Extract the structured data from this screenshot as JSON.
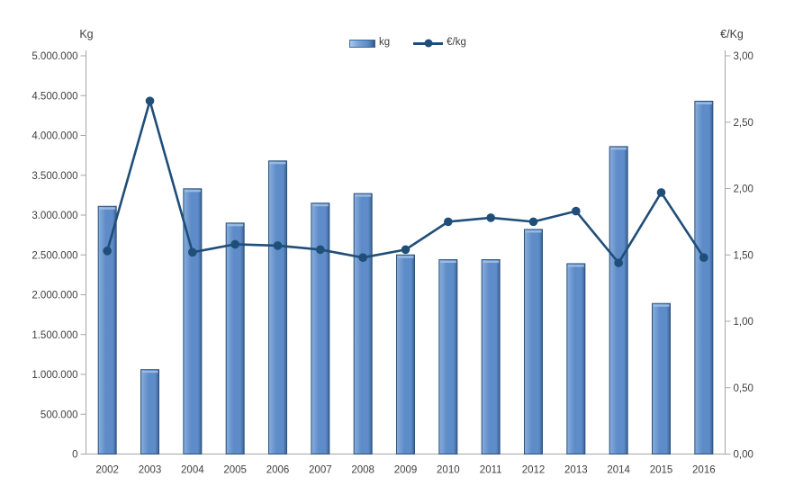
{
  "chart_data": {
    "type": "combo-bar-line",
    "categories": [
      "2002",
      "2003",
      "2004",
      "2005",
      "2006",
      "2007",
      "2008",
      "2009",
      "2010",
      "2011",
      "2012",
      "2013",
      "2014",
      "2015",
      "2016"
    ],
    "series": [
      {
        "name": "kg",
        "type": "bar",
        "axis": "left",
        "values": [
          3110000,
          1060000,
          3330000,
          2900000,
          3680000,
          3150000,
          3270000,
          2500000,
          2440000,
          2440000,
          2820000,
          2390000,
          3860000,
          1890000,
          4430000
        ]
      },
      {
        "name": "€/kg",
        "type": "line",
        "axis": "right",
        "values": [
          1.53,
          2.66,
          1.52,
          1.58,
          1.57,
          1.54,
          1.48,
          1.54,
          1.75,
          1.78,
          1.75,
          1.83,
          1.44,
          1.97,
          1.48
        ]
      }
    ],
    "left_axis": {
      "title": "Kg",
      "min": 0,
      "max": 5000000,
      "step": 500000,
      "tick_labels": [
        "5.000.000",
        "4.500.000",
        "4.000.000",
        "3.500.000",
        "3.000.000",
        "2.500.000",
        "2.000.000",
        "1.500.000",
        "1.000.000",
        "500.000",
        "0"
      ]
    },
    "right_axis": {
      "title": "€/Kg",
      "min": 0,
      "max": 3,
      "step": 0.5,
      "tick_labels": [
        "3,00",
        "2,50",
        "2,00",
        "1,50",
        "1,00",
        "0,50",
        "0,00"
      ]
    },
    "legend": {
      "position": "top",
      "entries": [
        {
          "label": "kg",
          "type": "bar"
        },
        {
          "label": "€/kg",
          "type": "line"
        }
      ]
    },
    "grid": false,
    "colors": {
      "bar_fill_light": "#88AEDC",
      "bar_fill_mid": "#5E8CC8",
      "bar_fill_dark": "#3A6296",
      "bar_stroke": "#2B5078",
      "bar_top_highlight": "#9DBEE6",
      "line": "#1F4E79",
      "text": "#3F3F3F",
      "axis": "#A6A6A6"
    }
  }
}
